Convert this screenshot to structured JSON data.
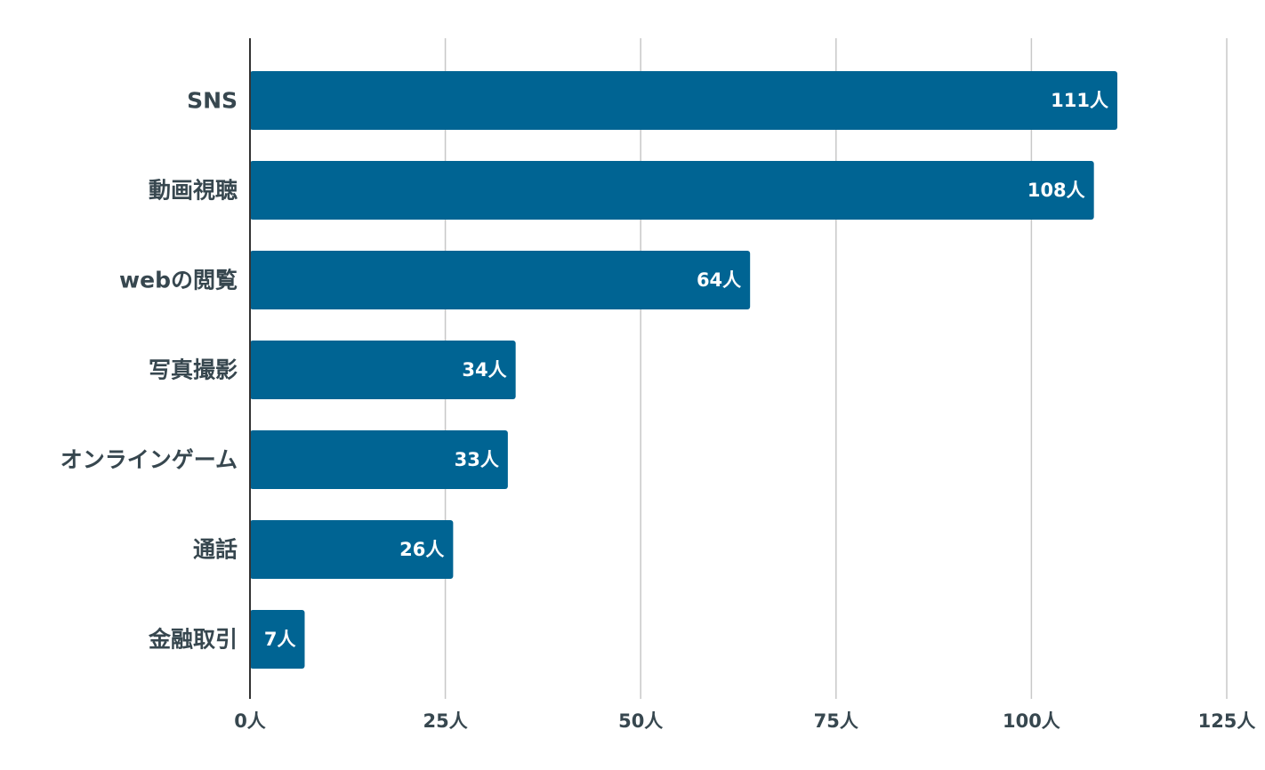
{
  "chart_data": {
    "type": "bar",
    "orientation": "horizontal",
    "categories": [
      "SNS",
      "動画視聴",
      "webの閲覧",
      "写真撮影",
      "オンラインゲーム",
      "通話",
      "金融取引"
    ],
    "values": [
      111,
      108,
      64,
      34,
      33,
      26,
      7
    ],
    "data_labels": [
      "111人",
      "108人",
      "64人",
      "34人",
      "33人",
      "26人",
      "7人"
    ],
    "x_ticks": [
      0,
      25,
      50,
      75,
      100,
      125
    ],
    "x_tick_labels": [
      "0人",
      "25人",
      "50人",
      "75人",
      "100人",
      "125人"
    ],
    "xlim": [
      0,
      125
    ],
    "grid": true,
    "legend": "none",
    "title": "",
    "xlabel": "",
    "ylabel": "",
    "colors": {
      "bar": "#006493",
      "grid": "#c8c8c8",
      "axis": "#333333",
      "label_text": "#37474f",
      "value_text": "#ffffff"
    }
  }
}
